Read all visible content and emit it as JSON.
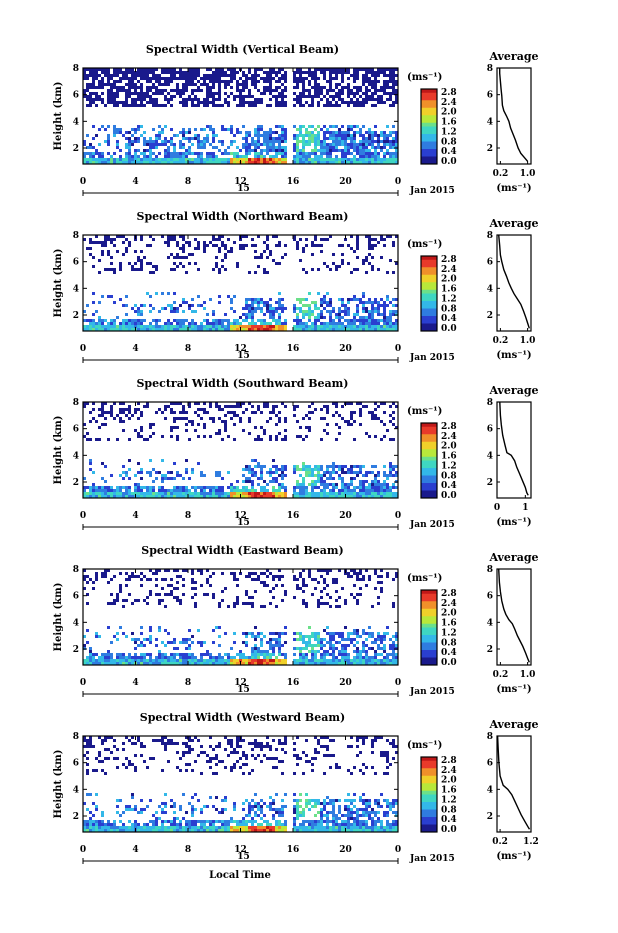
{
  "chart_data": [
    {
      "type": "heatmap",
      "title": "Spectral Width (Vertical Beam)",
      "ylabel": "Height (km)",
      "x_ticks": [
        "0",
        "4",
        "8",
        "12",
        "16",
        "20",
        "0"
      ],
      "date_marker": "15",
      "date_label": "Jan 2015",
      "xlim": [
        0,
        24
      ],
      "ylim": [
        0.8,
        8
      ],
      "y_ticks": [
        "2",
        "4",
        "6",
        "8"
      ],
      "colorbar": {
        "unit": "(ms⁻¹)",
        "ticks": [
          "2.8",
          "2.4",
          "2.0",
          "1.6",
          "1.2",
          "0.8",
          "0.4",
          "0.0"
        ],
        "range": [
          0,
          2.8
        ]
      },
      "profile": {
        "title": "Average",
        "xlabel": "(ms⁻¹)",
        "x_ticks": [
          "0.2",
          "1.0"
        ],
        "xlim": [
          0.1,
          1.1
        ],
        "y_ticks": [
          "2",
          "4",
          "6",
          "8"
        ],
        "points": [
          [
            0.18,
            8.0
          ],
          [
            0.18,
            7.6
          ],
          [
            0.2,
            7.0
          ],
          [
            0.22,
            6.4
          ],
          [
            0.24,
            5.9
          ],
          [
            0.26,
            5.2
          ],
          [
            0.3,
            4.8
          ],
          [
            0.38,
            4.4
          ],
          [
            0.45,
            4.0
          ],
          [
            0.5,
            3.5
          ],
          [
            0.58,
            3.0
          ],
          [
            0.64,
            2.6
          ],
          [
            0.72,
            2.0
          ],
          [
            0.8,
            1.6
          ],
          [
            0.9,
            1.3
          ],
          [
            1.0,
            1.0
          ]
        ]
      }
    },
    {
      "type": "heatmap",
      "title": "Spectral Width (Northward Beam)",
      "ylabel": "Height (km)",
      "x_ticks": [
        "0",
        "4",
        "8",
        "12",
        "16",
        "20",
        "0"
      ],
      "date_marker": "15",
      "date_label": "Jan 2015",
      "xlim": [
        0,
        24
      ],
      "ylim": [
        0.8,
        8
      ],
      "y_ticks": [
        "2",
        "4",
        "6",
        "8"
      ],
      "colorbar": {
        "unit": "(ms⁻¹)",
        "ticks": [
          "2.8",
          "2.4",
          "2.0",
          "1.6",
          "1.2",
          "0.8",
          "0.4",
          "0.0"
        ],
        "range": [
          0,
          2.8
        ]
      },
      "profile": {
        "title": "Average",
        "xlabel": "(ms⁻¹)",
        "x_ticks": [
          "0.2",
          "1.0"
        ],
        "xlim": [
          0.1,
          1.1
        ],
        "y_ticks": [
          "2",
          "4",
          "6",
          "8"
        ],
        "points": [
          [
            0.15,
            8.0
          ],
          [
            0.18,
            7.2
          ],
          [
            0.2,
            6.5
          ],
          [
            0.24,
            6.0
          ],
          [
            0.3,
            5.4
          ],
          [
            0.38,
            4.9
          ],
          [
            0.45,
            4.4
          ],
          [
            0.52,
            4.0
          ],
          [
            0.6,
            3.6
          ],
          [
            0.7,
            3.2
          ],
          [
            0.8,
            2.8
          ],
          [
            0.88,
            2.3
          ],
          [
            0.95,
            1.8
          ],
          [
            1.0,
            1.4
          ],
          [
            1.05,
            1.0
          ]
        ]
      }
    },
    {
      "type": "heatmap",
      "title": "Spectral Width (Southward Beam)",
      "ylabel": "Height (km)",
      "x_ticks": [
        "0",
        "4",
        "8",
        "12",
        "16",
        "20",
        "0"
      ],
      "date_marker": "15",
      "date_label": "Jan 2015",
      "xlim": [
        0,
        24
      ],
      "ylim": [
        0.8,
        8
      ],
      "y_ticks": [
        "2",
        "4",
        "6",
        "8"
      ],
      "colorbar": {
        "unit": "(ms⁻¹)",
        "ticks": [
          "2.8",
          "2.4",
          "2.0",
          "1.6",
          "1.2",
          "0.8",
          "0.4",
          "0.0"
        ],
        "range": [
          0,
          2.8
        ]
      },
      "profile": {
        "title": "Average",
        "xlabel": "(ms⁻¹)",
        "x_ticks": [
          "0",
          "1"
        ],
        "xlim": [
          0,
          1.2
        ],
        "y_ticks": [
          "2",
          "4",
          "6",
          "8"
        ],
        "points": [
          [
            0.1,
            8.0
          ],
          [
            0.12,
            7.0
          ],
          [
            0.15,
            6.3
          ],
          [
            0.2,
            5.5
          ],
          [
            0.28,
            4.8
          ],
          [
            0.35,
            4.2
          ],
          [
            0.5,
            4.0
          ],
          [
            0.62,
            3.6
          ],
          [
            0.7,
            3.1
          ],
          [
            0.8,
            2.6
          ],
          [
            0.9,
            2.1
          ],
          [
            1.0,
            1.6
          ],
          [
            1.05,
            1.2
          ],
          [
            1.1,
            1.0
          ]
        ]
      }
    },
    {
      "type": "heatmap",
      "title": "Spectral Width (Eastward Beam)",
      "ylabel": "Height (km)",
      "x_ticks": [
        "0",
        "4",
        "8",
        "12",
        "16",
        "20",
        "0"
      ],
      "date_marker": "15",
      "date_label": "Jan 2015",
      "xlim": [
        0,
        24
      ],
      "ylim": [
        0.8,
        8
      ],
      "y_ticks": [
        "2",
        "4",
        "6",
        "8"
      ],
      "colorbar": {
        "unit": "(ms⁻¹)",
        "ticks": [
          "2.8",
          "2.4",
          "2.0",
          "1.6",
          "1.2",
          "0.8",
          "0.4",
          "0.0"
        ],
        "range": [
          0,
          2.8
        ]
      },
      "profile": {
        "title": "Average",
        "xlabel": "(ms⁻¹)",
        "x_ticks": [
          "0.2",
          "1.0"
        ],
        "xlim": [
          0.1,
          1.1
        ],
        "y_ticks": [
          "2",
          "4",
          "6",
          "8"
        ],
        "points": [
          [
            0.15,
            8.0
          ],
          [
            0.17,
            7.0
          ],
          [
            0.2,
            6.3
          ],
          [
            0.24,
            5.6
          ],
          [
            0.3,
            5.0
          ],
          [
            0.36,
            4.6
          ],
          [
            0.45,
            4.2
          ],
          [
            0.55,
            3.9
          ],
          [
            0.62,
            3.5
          ],
          [
            0.7,
            3.0
          ],
          [
            0.78,
            2.6
          ],
          [
            0.86,
            2.2
          ],
          [
            0.94,
            1.7
          ],
          [
            1.0,
            1.3
          ],
          [
            1.05,
            1.0
          ]
        ]
      }
    },
    {
      "type": "heatmap",
      "title": "Spectral Width (Westward Beam)",
      "ylabel": "Height (km)",
      "x_ticks": [
        "0",
        "4",
        "8",
        "12",
        "16",
        "20",
        "0"
      ],
      "date_marker": "15",
      "date_label": "Jan 2015",
      "xlim": [
        0,
        24
      ],
      "ylim": [
        0.8,
        8
      ],
      "y_ticks": [
        "2",
        "4",
        "6",
        "8"
      ],
      "colorbar": {
        "unit": "(ms⁻¹)",
        "ticks": [
          "2.8",
          "2.4",
          "2.0",
          "1.6",
          "1.2",
          "0.8",
          "0.4",
          "0.0"
        ],
        "range": [
          0,
          2.8
        ]
      },
      "profile": {
        "title": "Average",
        "xlabel": "(ms⁻¹)",
        "x_ticks": [
          "0.2",
          "1.2"
        ],
        "xlim": [
          0.1,
          1.2
        ],
        "y_ticks": [
          "2",
          "4",
          "6",
          "8"
        ],
        "points": [
          [
            0.12,
            8.0
          ],
          [
            0.14,
            7.0
          ],
          [
            0.16,
            6.0
          ],
          [
            0.2,
            5.0
          ],
          [
            0.3,
            4.3
          ],
          [
            0.45,
            4.0
          ],
          [
            0.58,
            3.6
          ],
          [
            0.68,
            3.1
          ],
          [
            0.78,
            2.6
          ],
          [
            0.88,
            2.1
          ],
          [
            1.0,
            1.6
          ],
          [
            1.1,
            1.2
          ],
          [
            1.15,
            1.0
          ]
        ]
      }
    }
  ],
  "footer": {
    "xlabel": "Local Time"
  },
  "colormap": [
    "#1a1a8c",
    "#2a3fd0",
    "#2f7ce0",
    "#33b8e8",
    "#3fd6c2",
    "#6be08a",
    "#b8e83a",
    "#f0d02a",
    "#f0902a",
    "#e83a2a",
    "#c01818"
  ]
}
